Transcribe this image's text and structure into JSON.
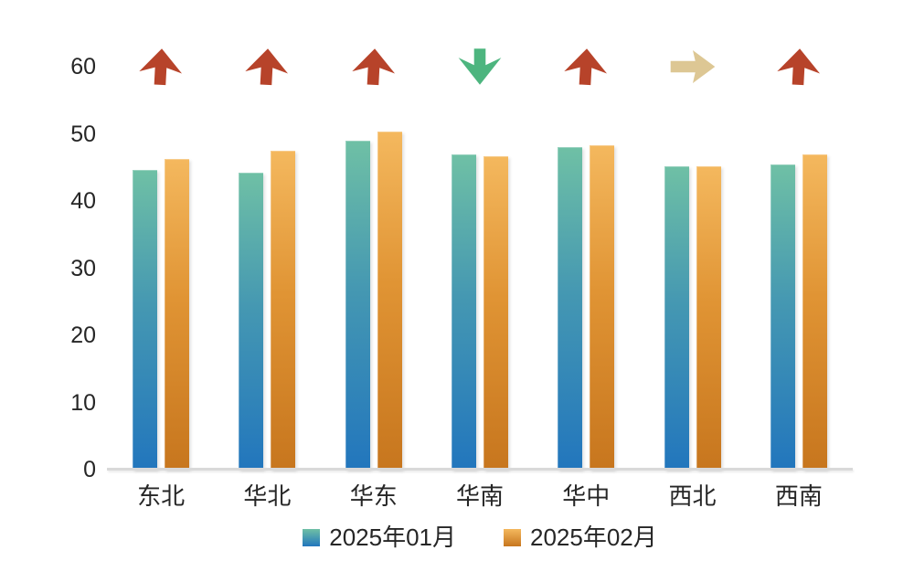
{
  "chart_data": {
    "type": "bar",
    "title": "",
    "xlabel": "",
    "ylabel": "",
    "categories": [
      "东北",
      "华北",
      "华东",
      "华南",
      "华中",
      "西北",
      "西南"
    ],
    "series": [
      {
        "name": "2025年01月",
        "values": [
          44.6,
          44.2,
          49.0,
          47.0,
          48.0,
          45.2,
          45.5
        ]
      },
      {
        "name": "2025年02月",
        "values": [
          46.3,
          47.5,
          50.4,
          46.7,
          48.3,
          45.2,
          46.9
        ]
      }
    ],
    "trend_arrows": [
      "up",
      "up",
      "up",
      "down",
      "up",
      "right",
      "up"
    ],
    "yticks": [
      0,
      10,
      20,
      30,
      40,
      50,
      60
    ],
    "ylim": [
      0,
      60
    ],
    "grid": false,
    "legend_position": "bottom"
  },
  "colors": {
    "series1_top": "#6fc0a5",
    "series1_mid": "#4598b2",
    "series1_bottom": "#2276bd",
    "series2_top": "#f4b85e",
    "series2_mid": "#e09434",
    "series2_bottom": "#c7761e",
    "arrow_up": "#b7432a",
    "arrow_down": "#4db57f",
    "arrow_right": "#ddc794",
    "axis_line": "#d9d9d9",
    "text": "#262626",
    "background": "#ffffff"
  }
}
